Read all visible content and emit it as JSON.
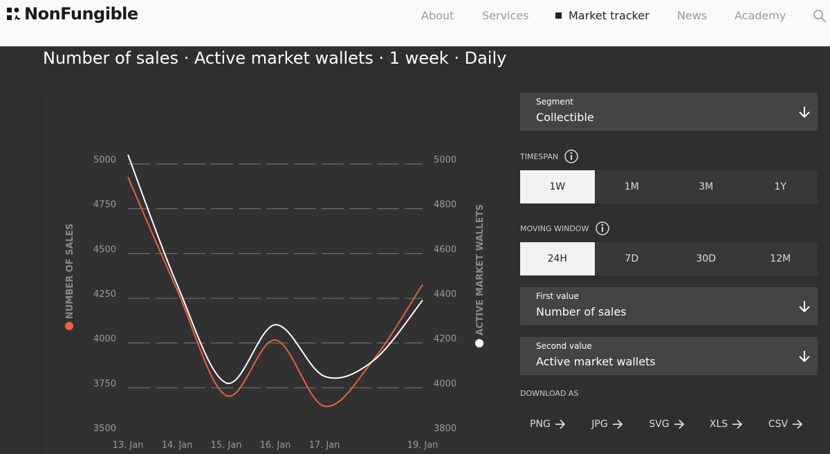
{
  "header": {
    "brand": "NonFungible",
    "nav": [
      "About",
      "Services",
      "Market tracker",
      "News",
      "Academy"
    ],
    "active": 2
  },
  "title": "Number of sales · Active market wallets · 1 week · Daily",
  "chart_data": {
    "type": "line",
    "categories": [
      "13. Jan",
      "14. Jan",
      "15. Jan",
      "16. Jan",
      "17. Jan",
      null,
      "19. Jan"
    ],
    "series": [
      {
        "name": "NUMBER OF SALES",
        "color": "#e8623f",
        "values": [
          4900,
          4270,
          3680,
          3990,
          3620,
          3880,
          4300
        ]
      },
      {
        "name": "ACTIVE MARKET WALLETS",
        "color": "#ffffff",
        "axis": "y2",
        "values": [
          5020,
          4440,
          4000,
          4260,
          4030,
          4100,
          4370
        ]
      }
    ],
    "ylim": [
      3500,
      5250
    ],
    "yticks": [
      3500,
      3750,
      4000,
      4250,
      4500,
      4750,
      5000
    ],
    "y2lim": [
      3800,
      5200
    ],
    "y2ticks": [
      3800,
      4000,
      4200,
      4400,
      4600,
      4800,
      5000
    ],
    "grid": true
  },
  "controls": {
    "segment": {
      "label": "Segment",
      "value": "Collectible"
    },
    "timespan": {
      "label": "TIMESPAN",
      "options": [
        "1W",
        "1M",
        "3M",
        "1Y"
      ],
      "selected": 0
    },
    "moving_window": {
      "label": "MOVING WINDOW",
      "options": [
        "24H",
        "7D",
        "30D",
        "12M"
      ],
      "selected": 0
    },
    "first_value": {
      "label": "First value",
      "value": "Number of sales"
    },
    "second_value": {
      "label": "Second value",
      "value": "Active market wallets"
    },
    "download": {
      "label": "DOWNLOAD AS",
      "formats": [
        "PNG",
        "JPG",
        "SVG",
        "XLS",
        "CSV"
      ]
    }
  }
}
